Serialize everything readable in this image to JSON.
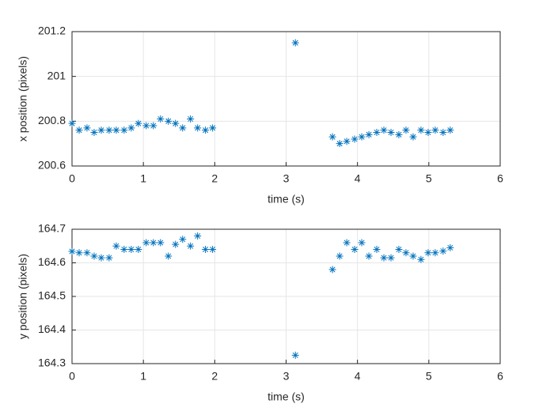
{
  "chart_data": [
    {
      "type": "scatter",
      "marker": "*",
      "color": "#0072bd",
      "grid": true,
      "xlabel": "time (s)",
      "ylabel": "x position (pixels)",
      "xlim": [
        0,
        6
      ],
      "xticks": [
        0,
        1,
        2,
        3,
        4,
        5,
        6
      ],
      "ylim": [
        200.6,
        201.2
      ],
      "yticks": [
        200.6,
        200.8,
        201,
        201.2
      ],
      "x": [
        0,
        0.1,
        0.21,
        0.31,
        0.41,
        0.52,
        0.62,
        0.73,
        0.83,
        0.93,
        1.04,
        1.14,
        1.24,
        1.35,
        1.45,
        1.55,
        1.66,
        1.76,
        1.87,
        1.97,
        3.13,
        3.65,
        3.75,
        3.85,
        3.96,
        4.06,
        4.16,
        4.27,
        4.37,
        4.47,
        4.58,
        4.68,
        4.78,
        4.89,
        4.99,
        5.09,
        5.2,
        5.3
      ],
      "values": [
        200.79,
        200.76,
        200.77,
        200.75,
        200.76,
        200.76,
        200.76,
        200.76,
        200.77,
        200.79,
        200.78,
        200.78,
        200.81,
        200.8,
        200.79,
        200.77,
        200.81,
        200.77,
        200.76,
        200.77,
        201.15,
        200.73,
        200.7,
        200.71,
        200.72,
        200.73,
        200.74,
        200.75,
        200.76,
        200.75,
        200.74,
        200.76,
        200.73,
        200.76,
        200.75,
        200.76,
        200.75,
        200.76
      ]
    },
    {
      "type": "scatter",
      "marker": "*",
      "color": "#0072bd",
      "grid": true,
      "xlabel": "time (s)",
      "ylabel": "y position (pixels)",
      "xlim": [
        0,
        6
      ],
      "xticks": [
        0,
        1,
        2,
        3,
        4,
        5,
        6
      ],
      "ylim": [
        164.3,
        164.7
      ],
      "yticks": [
        164.3,
        164.4,
        164.5,
        164.6,
        164.7
      ],
      "x": [
        0,
        0.1,
        0.21,
        0.31,
        0.41,
        0.52,
        0.62,
        0.73,
        0.83,
        0.93,
        1.04,
        1.14,
        1.24,
        1.35,
        1.45,
        1.55,
        1.66,
        1.76,
        1.87,
        1.97,
        3.13,
        3.65,
        3.75,
        3.85,
        3.96,
        4.06,
        4.16,
        4.27,
        4.37,
        4.47,
        4.58,
        4.68,
        4.78,
        4.89,
        4.99,
        5.09,
        5.2,
        5.3
      ],
      "values": [
        164.634,
        164.63,
        164.63,
        164.62,
        164.615,
        164.615,
        164.65,
        164.64,
        164.64,
        164.64,
        164.66,
        164.66,
        164.66,
        164.62,
        164.655,
        164.67,
        164.65,
        164.68,
        164.64,
        164.64,
        164.325,
        164.58,
        164.62,
        164.66,
        164.64,
        164.66,
        164.62,
        164.64,
        164.615,
        164.615,
        164.64,
        164.63,
        164.62,
        164.61,
        164.63,
        164.63,
        164.635,
        164.645
      ]
    }
  ]
}
